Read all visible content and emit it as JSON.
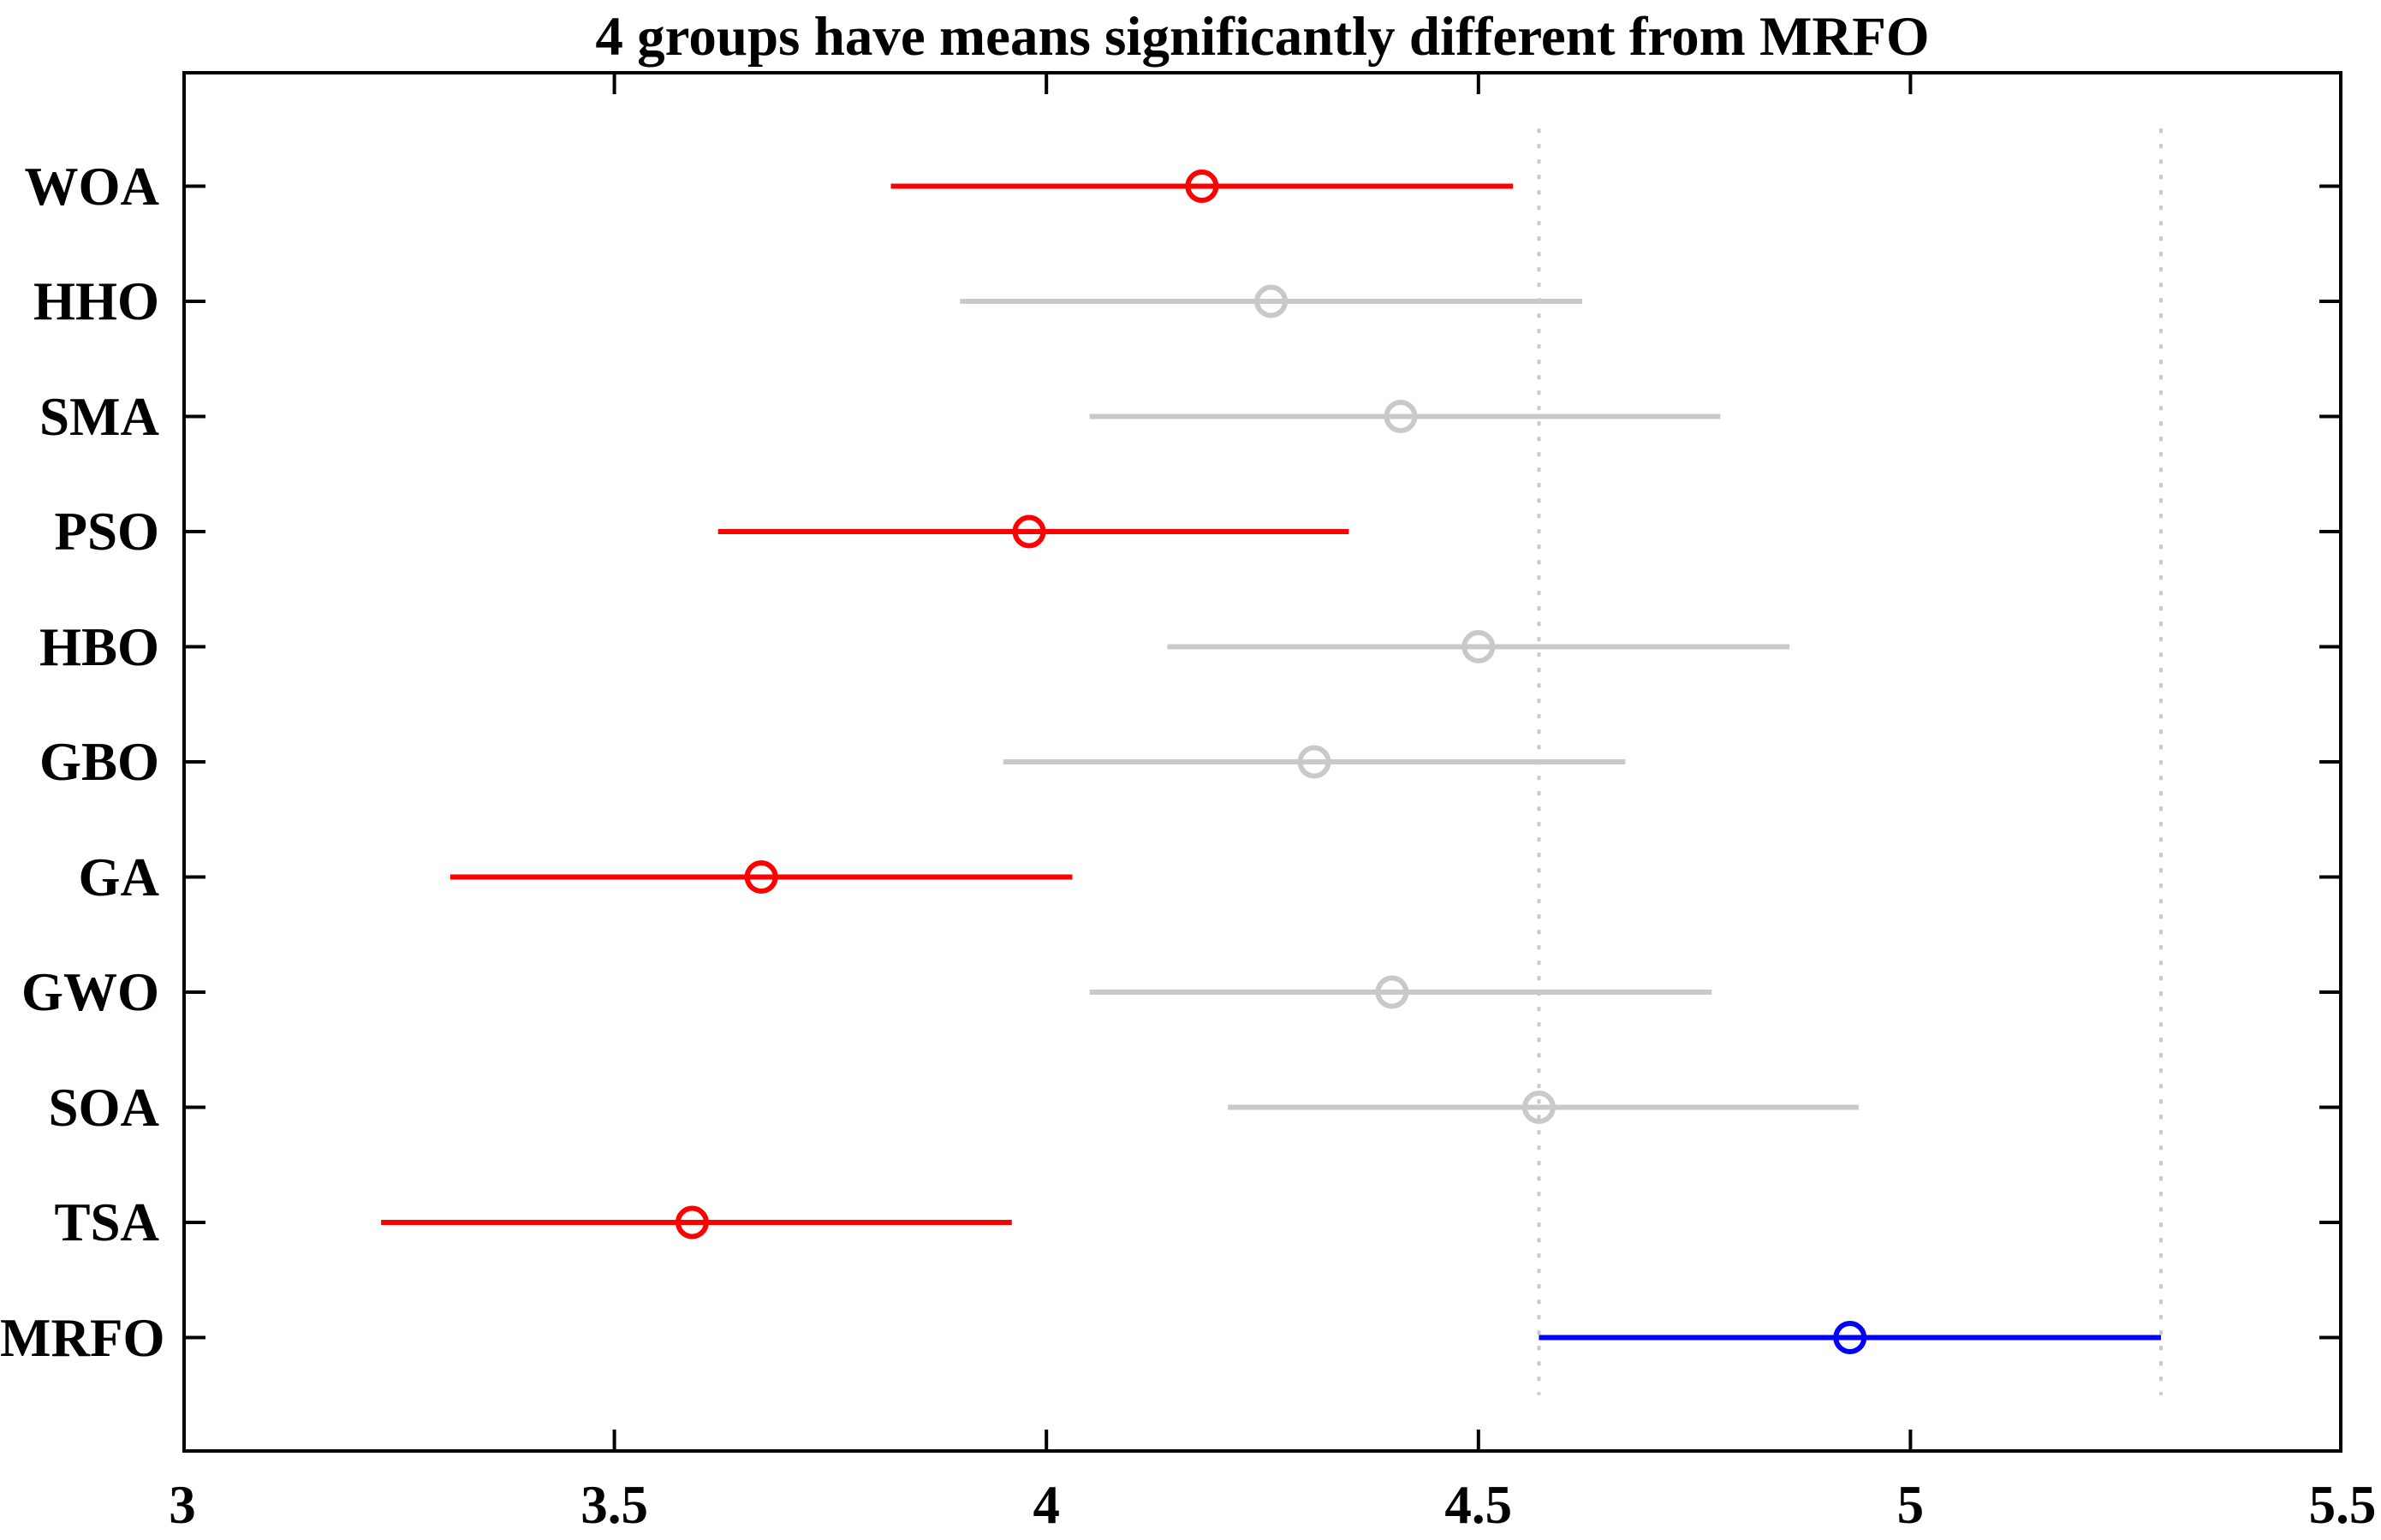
{
  "chart_data": {
    "type": "interval_comparison",
    "title": "4 groups have means significantly different from MRFO",
    "orientation": "horizontal",
    "xlim": [
      3,
      5.5
    ],
    "xtick_values": [
      3,
      3.5,
      4,
      4.5,
      5,
      5.5
    ],
    "xtick_labels": [
      "3",
      "3.5",
      "4",
      "4.5",
      "5",
      "5.5"
    ],
    "control_group": "MRFO",
    "groups": [
      {
        "label": "WOA",
        "mean": 4.18,
        "lower": 3.82,
        "upper": 4.54,
        "status": "significantly_different"
      },
      {
        "label": "HHO",
        "mean": 4.26,
        "lower": 3.9,
        "upper": 4.62,
        "status": "not_significant"
      },
      {
        "label": "SMA",
        "mean": 4.41,
        "lower": 4.05,
        "upper": 4.78,
        "status": "not_significant"
      },
      {
        "label": "PSO",
        "mean": 3.98,
        "lower": 3.62,
        "upper": 4.35,
        "status": "significantly_different"
      },
      {
        "label": "HBO",
        "mean": 4.5,
        "lower": 4.14,
        "upper": 4.86,
        "status": "not_significant"
      },
      {
        "label": "GBO",
        "mean": 4.31,
        "lower": 3.95,
        "upper": 4.67,
        "status": "not_significant"
      },
      {
        "label": "GA",
        "mean": 3.67,
        "lower": 3.31,
        "upper": 4.03,
        "status": "significantly_different"
      },
      {
        "label": "GWO",
        "mean": 4.4,
        "lower": 4.05,
        "upper": 4.77,
        "status": "not_significant"
      },
      {
        "label": "SOA",
        "mean": 4.57,
        "lower": 4.21,
        "upper": 4.94,
        "status": "not_significant"
      },
      {
        "label": "TSA",
        "mean": 3.59,
        "lower": 3.23,
        "upper": 3.96,
        "status": "significantly_different"
      },
      {
        "label": "MRFO",
        "mean": 4.93,
        "lower": 4.57,
        "upper": 5.29,
        "status": "control"
      }
    ],
    "reference_lines": {
      "values": [
        4.57,
        5.29
      ],
      "style": "dotted"
    },
    "colors": {
      "significantly_different": "#ff0000",
      "not_significant": "#c9c9c9",
      "control": "#0000ff",
      "reference": "#c9c9c9",
      "axis": "#000000",
      "background": "#ffffff"
    },
    "grid": false,
    "legend": "none"
  }
}
